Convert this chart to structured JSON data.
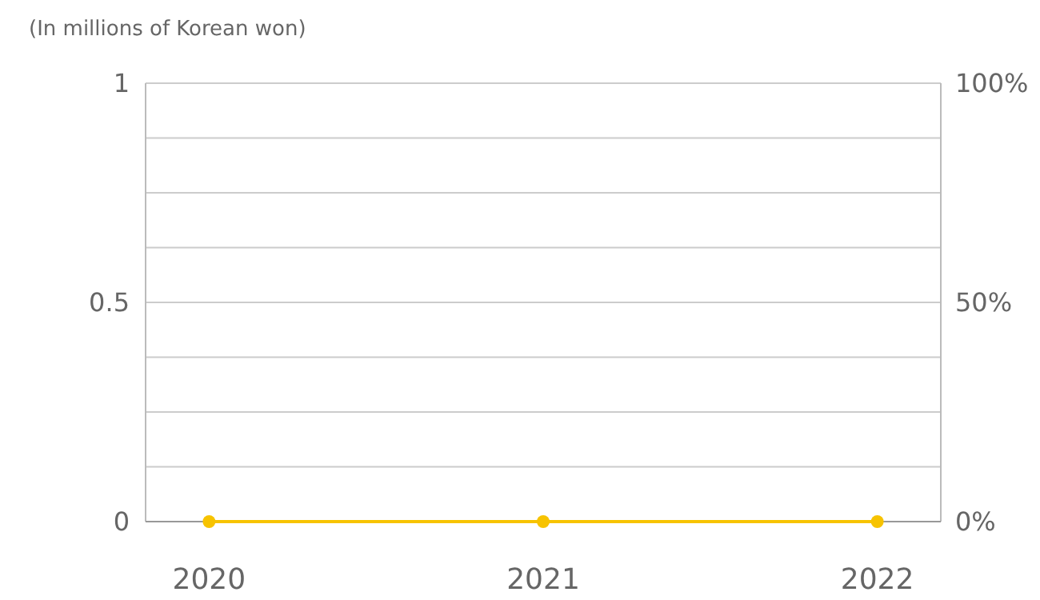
{
  "chart_data": {
    "type": "line",
    "title": "(In millions of Korean won)",
    "categories": [
      "2020",
      "2021",
      "2022"
    ],
    "series": [
      {
        "color": "#f7c300",
        "values": [
          0,
          0,
          0
        ]
      }
    ],
    "ylim": [
      0,
      1
    ],
    "yticks": [
      0,
      {
        "value": 0.125,
        "label": null
      },
      {
        "value": 0.25,
        "label": null
      },
      {
        "value": 0.375,
        "label": null
      },
      0.5,
      {
        "value": 0.625,
        "label": null
      },
      {
        "value": 0.75,
        "label": null
      },
      {
        "value": 0.875,
        "label": null
      },
      1
    ],
    "y2lim": [
      0,
      100
    ],
    "y2ticks": [
      {
        "value": 0,
        "label": "0%"
      },
      {
        "value": 50,
        "label": "50%"
      },
      {
        "value": 100,
        "label": "100%"
      }
    ],
    "grid": "y",
    "marker": "circle",
    "line_style": "solid"
  }
}
